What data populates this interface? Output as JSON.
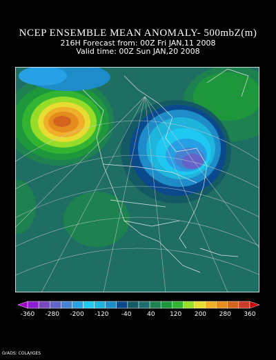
{
  "header": {
    "title": "NCEP ENSEMBLE MEAN ANOMALY- 500mbZ(m)",
    "forecast": "216H Forecast from: 00Z Fri JAN,11 2008",
    "valid": "Valid time: 00Z Sun JAN,20 2008"
  },
  "colorbar": {
    "labels": [
      "-360",
      "-280",
      "-200",
      "-120",
      "-40",
      "40",
      "120",
      "200",
      "280",
      "360"
    ],
    "colors": [
      "#a000c8",
      "#8c1ed2",
      "#7846be",
      "#6464c8",
      "#4682d2",
      "#28a0e6",
      "#1ec8f0",
      "#1eb4dc",
      "#1e8cc8",
      "#0a4a8c",
      "#145a64",
      "#1e6e6e",
      "#1e8250",
      "#1e963c",
      "#32b432",
      "#96dc28",
      "#e6dc32",
      "#f0af28",
      "#e68c1e",
      "#d2641e",
      "#c83c28",
      "#c80000"
    ]
  },
  "footer": "GrADS: COLA/IGES"
}
